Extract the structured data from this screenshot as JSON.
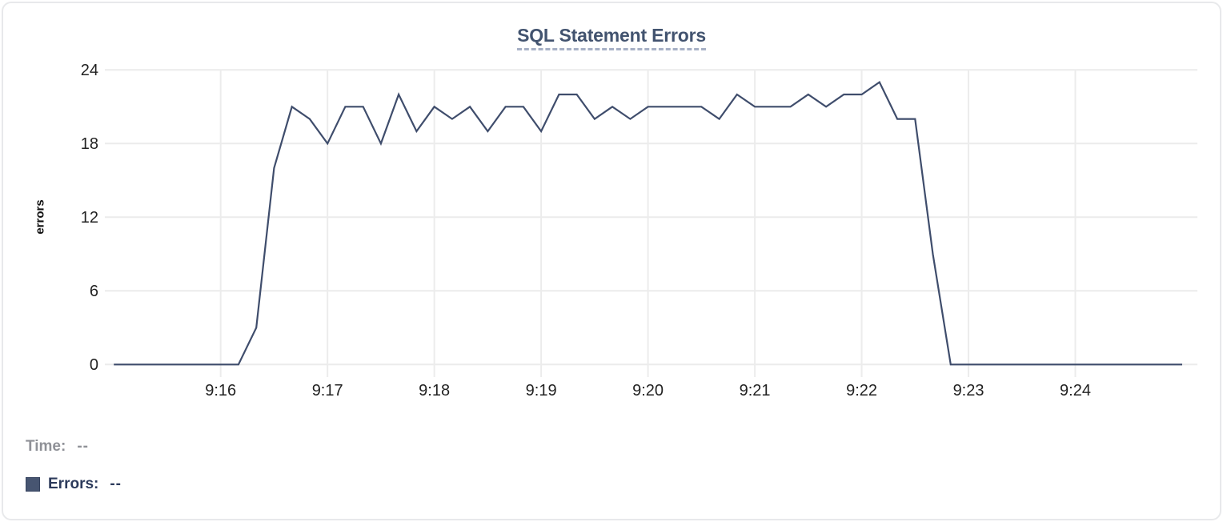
{
  "chart_data": {
    "type": "line",
    "title": "SQL Statement Errors",
    "xlabel": "",
    "ylabel": "errors",
    "ylim": [
      0,
      24
    ],
    "yticks": [
      0,
      6,
      12,
      18,
      24
    ],
    "xtick_labels": [
      "9:16",
      "9:17",
      "9:18",
      "9:19",
      "9:20",
      "9:21",
      "9:22",
      "9:23",
      "9:24"
    ],
    "grid": true,
    "legend_position": "bottom-left",
    "series": [
      {
        "name": "Errors",
        "x": [
          "9:15:00",
          "9:15:10",
          "9:15:20",
          "9:15:30",
          "9:15:40",
          "9:15:50",
          "9:16:00",
          "9:16:10",
          "9:16:20",
          "9:16:30",
          "9:16:40",
          "9:16:50",
          "9:17:00",
          "9:17:10",
          "9:17:20",
          "9:17:30",
          "9:17:40",
          "9:17:50",
          "9:18:00",
          "9:18:10",
          "9:18:20",
          "9:18:30",
          "9:18:40",
          "9:18:50",
          "9:19:00",
          "9:19:10",
          "9:19:20",
          "9:19:30",
          "9:19:40",
          "9:19:50",
          "9:20:00",
          "9:20:10",
          "9:20:20",
          "9:20:30",
          "9:20:40",
          "9:20:50",
          "9:21:00",
          "9:21:10",
          "9:21:20",
          "9:21:30",
          "9:21:40",
          "9:21:50",
          "9:22:00",
          "9:22:10",
          "9:22:20",
          "9:22:30",
          "9:22:40",
          "9:22:50",
          "9:23:00",
          "9:23:10",
          "9:23:20",
          "9:23:30",
          "9:23:40",
          "9:23:50",
          "9:24:00",
          "9:24:10",
          "9:24:20",
          "9:24:30",
          "9:24:40",
          "9:24:50",
          "9:25:00"
        ],
        "values": [
          0,
          0,
          0,
          0,
          0,
          0,
          0,
          0,
          3,
          16,
          21,
          20,
          18,
          21,
          21,
          18,
          22,
          19,
          21,
          20,
          21,
          19,
          21,
          21,
          19,
          22,
          22,
          20,
          21,
          20,
          21,
          21,
          21,
          21,
          20,
          22,
          21,
          21,
          21,
          22,
          21,
          22,
          22,
          23,
          20,
          20,
          9,
          0,
          0,
          0,
          0,
          0,
          0,
          0,
          0,
          0,
          0,
          0,
          0,
          0,
          0
        ]
      }
    ]
  },
  "legend": {
    "time_label": "Time:",
    "time_value": "--",
    "errors_label": "Errors:",
    "errors_value": "--"
  },
  "colors": {
    "line": "#3f4d6c",
    "title": "#42536f",
    "title_underline": "#a7b1c6",
    "grid": "#ececec",
    "tick_text": "#222222",
    "legend_time": "#8f9197",
    "legend_errors": "#2c3a5b",
    "errors_swatch": "#475571",
    "card_border": "#e8e9eb"
  }
}
